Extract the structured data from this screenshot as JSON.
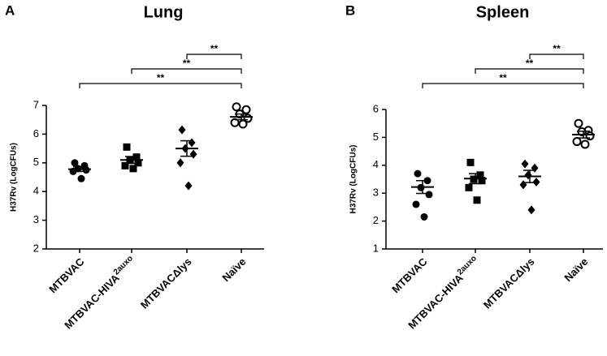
{
  "chart_data": [
    {
      "type": "dotplot",
      "panel": "A",
      "title": "Lung",
      "y_label": "H37Rv (LogCFUs)",
      "categories": [
        "MTBVAC",
        {
          "text": "MTBVAC-HIVA",
          "sup": "2auxo"
        },
        "MTBVACΔlys",
        "Naïve"
      ],
      "markers": [
        "circle",
        "square",
        "diamond",
        "open-circle"
      ],
      "points": [
        [
          5.0,
          4.9,
          4.8,
          4.75,
          4.7,
          4.45
        ],
        [
          5.55,
          5.2,
          5.1,
          5.0,
          4.9,
          4.8
        ],
        [
          6.15,
          5.7,
          5.5,
          5.3,
          5.0,
          4.2
        ],
        [
          6.95,
          6.85,
          6.7,
          6.55,
          6.4,
          6.35
        ]
      ],
      "means": [
        4.78,
        5.1,
        5.5,
        6.6
      ],
      "errors": [
        0.08,
        0.12,
        0.27,
        0.1
      ],
      "ylim": [
        2,
        7
      ],
      "yticks": [
        2,
        3,
        4,
        5,
        6,
        7
      ],
      "annotations": [
        {
          "from": 2,
          "to": 3,
          "label": "**"
        },
        {
          "from": 1,
          "to": 3,
          "label": "**"
        },
        {
          "from": 0,
          "to": 3,
          "label": "**"
        }
      ]
    },
    {
      "type": "dotplot",
      "panel": "B",
      "title": "Spleen",
      "y_label": "H37Rv (LogCFUs)",
      "categories": [
        "MTBVAC",
        {
          "text": "MTBVAC-HIVA",
          "sup": "2auxo"
        },
        "MTBVACΔlys",
        "Naïve"
      ],
      "markers": [
        "circle",
        "square",
        "diamond",
        "open-circle"
      ],
      "points": [
        [
          3.7,
          3.45,
          3.2,
          2.95,
          2.6,
          2.15
        ],
        [
          4.1,
          3.65,
          3.5,
          3.45,
          3.2,
          2.75
        ],
        [
          4.05,
          3.9,
          3.65,
          3.4,
          3.3,
          2.4
        ],
        [
          5.5,
          5.25,
          5.2,
          5.05,
          4.85,
          4.75
        ]
      ],
      "means": [
        3.22,
        3.52,
        3.6,
        5.1
      ],
      "errors": [
        0.23,
        0.18,
        0.22,
        0.12
      ],
      "ylim": [
        1,
        6
      ],
      "yticks": [
        1,
        2,
        3,
        4,
        5,
        6
      ],
      "annotations": [
        {
          "from": 2,
          "to": 3,
          "label": "**"
        },
        {
          "from": 1,
          "to": 3,
          "label": "**"
        },
        {
          "from": 0,
          "to": 3,
          "label": "**"
        }
      ]
    }
  ]
}
